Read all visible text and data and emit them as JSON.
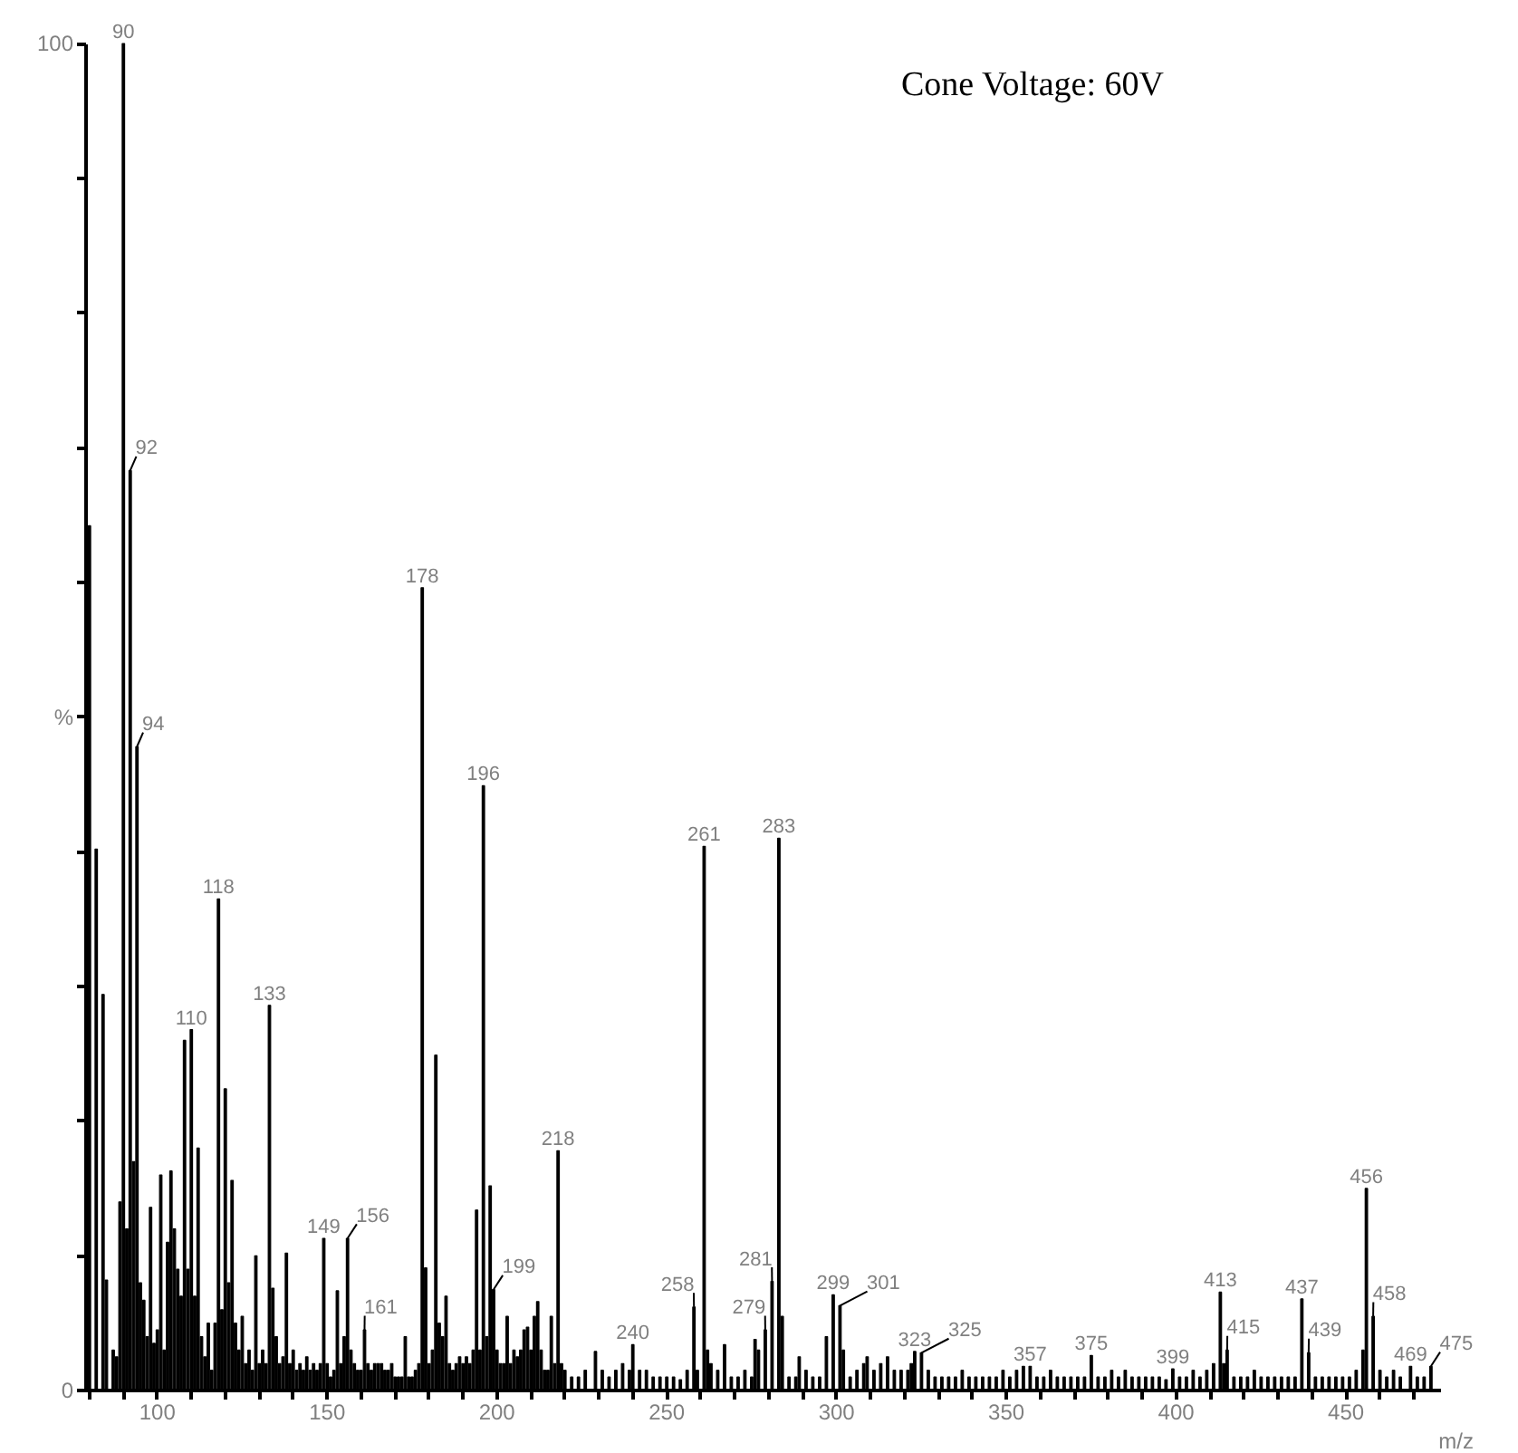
{
  "chart_data": {
    "type": "bar",
    "xlabel": "m/z",
    "x": [
      80,
      82,
      84,
      85,
      87,
      88,
      89,
      90,
      91,
      92,
      93,
      94,
      95,
      96,
      97,
      98,
      99,
      100,
      101,
      102,
      103,
      104,
      105,
      106,
      107,
      108,
      109,
      110,
      111,
      112,
      113,
      114,
      115,
      116,
      117,
      118,
      119,
      120,
      121,
      122,
      123,
      124,
      125,
      126,
      127,
      128,
      129,
      130,
      131,
      132,
      133,
      134,
      135,
      136,
      137,
      138,
      139,
      140,
      141,
      142,
      143,
      144,
      145,
      146,
      147,
      148,
      149,
      150,
      151,
      152,
      153,
      154,
      155,
      156,
      157,
      158,
      159,
      160,
      161,
      162,
      163,
      164,
      165,
      166,
      167,
      168,
      169,
      170,
      171,
      172,
      173,
      174,
      175,
      176,
      177,
      178,
      179,
      180,
      181,
      182,
      183,
      184,
      185,
      186,
      187,
      188,
      189,
      190,
      191,
      192,
      193,
      194,
      195,
      196,
      197,
      198,
      199,
      200,
      201,
      202,
      203,
      204,
      205,
      206,
      207,
      208,
      209,
      210,
      211,
      212,
      213,
      214,
      215,
      216,
      217,
      218,
      219,
      220,
      222,
      224,
      226,
      229,
      231,
      233,
      235,
      237,
      239,
      240,
      242,
      244,
      246,
      248,
      250,
      252,
      254,
      256,
      258,
      259,
      261,
      262,
      263,
      265,
      267,
      269,
      271,
      273,
      275,
      276,
      277,
      279,
      281,
      283,
      284,
      286,
      288,
      289,
      291,
      293,
      295,
      297,
      299,
      301,
      302,
      304,
      306,
      308,
      309,
      311,
      313,
      315,
      317,
      319,
      321,
      322,
      323,
      325,
      327,
      329,
      331,
      333,
      335,
      337,
      339,
      341,
      343,
      345,
      347,
      349,
      351,
      353,
      355,
      357,
      359,
      361,
      363,
      365,
      367,
      369,
      371,
      373,
      375,
      377,
      379,
      381,
      383,
      385,
      387,
      389,
      391,
      393,
      395,
      397,
      399,
      401,
      403,
      405,
      407,
      409,
      411,
      413,
      414,
      415,
      417,
      419,
      421,
      423,
      425,
      427,
      429,
      431,
      433,
      435,
      437,
      439,
      441,
      443,
      445,
      447,
      449,
      451,
      453,
      455,
      456,
      458,
      460,
      462,
      464,
      466,
      469,
      471,
      473,
      475
    ],
    "values": [
      64.2,
      40.2,
      29.4,
      8.2,
      3,
      2.5,
      14,
      100,
      12,
      68.3,
      17,
      47.8,
      8,
      6.7,
      4,
      13.6,
      3.5,
      4.5,
      16,
      3,
      11,
      16.3,
      12,
      9,
      7,
      26,
      9,
      26.8,
      7,
      18,
      4,
      2.5,
      5,
      1.5,
      5,
      36.5,
      6,
      22.4,
      8,
      15.6,
      5,
      3,
      5.5,
      2,
      3,
      1.5,
      10,
      2,
      3,
      2,
      28.6,
      7.6,
      4,
      2,
      2.5,
      10.2,
      2,
      3,
      1.5,
      2,
      1.5,
      2.5,
      1.5,
      2,
      1.5,
      2,
      11.3,
      2,
      1,
      1.5,
      7.4,
      2,
      4,
      11.3,
      3,
      2,
      1.5,
      1.5,
      4.5,
      2,
      1.5,
      2,
      2,
      2,
      1.5,
      1.5,
      2,
      1,
      1,
      1,
      4,
      1,
      1,
      1.5,
      2,
      59.6,
      9.1,
      2,
      3,
      24.9,
      5,
      4,
      7,
      2,
      1.5,
      2,
      2.5,
      2,
      2.5,
      2,
      3,
      13.4,
      3,
      44.9,
      4,
      15.2,
      7.5,
      3,
      2,
      2,
      5.5,
      2,
      3,
      2.5,
      3,
      4.5,
      4.7,
      3,
      5.5,
      6.6,
      3,
      1.5,
      1.5,
      5.5,
      2,
      17.8,
      2,
      1.5,
      1,
      1,
      1.5,
      2.9,
      1.5,
      1,
      1.5,
      2,
      1.5,
      3.4,
      1.5,
      1.5,
      1,
      1,
      1,
      1,
      0.8,
      1.5,
      6.2,
      1.5,
      40.4,
      3,
      2,
      1.5,
      3.4,
      1,
      1,
      1.5,
      1,
      3.8,
      3,
      4.5,
      8.1,
      41,
      5.5,
      1,
      1,
      2.5,
      1.5,
      1,
      1,
      4,
      7.1,
      6.3,
      3,
      1,
      1.5,
      2,
      2.5,
      1.5,
      2,
      2.5,
      1.5,
      1.5,
      1.5,
      2,
      2.9,
      2.8,
      1.5,
      1,
      1,
      1,
      1,
      1.5,
      1,
      1,
      1,
      1,
      1,
      1.5,
      1,
      1.5,
      1.8,
      1.8,
      1,
      1,
      1.5,
      1,
      1,
      1,
      1,
      1,
      2.6,
      1,
      1,
      1.5,
      1,
      1.5,
      1,
      1,
      1,
      1,
      1,
      0.8,
      1.6,
      1,
      1,
      1.5,
      1,
      1.5,
      2,
      7.3,
      2,
      3,
      1,
      1,
      1,
      1.5,
      1,
      1,
      1,
      1,
      1,
      1,
      6.8,
      2.8,
      1,
      1,
      1,
      1,
      1,
      1,
      1.5,
      3,
      15,
      5.5,
      1.5,
      1,
      1.5,
      1,
      1.8,
      1,
      1,
      1.8
    ],
    "color": "#000000",
    "xlim": [
      79,
      478
    ],
    "ylim": [
      0,
      100
    ],
    "xticks": [
      {
        "value": 80,
        "label": null
      },
      {
        "value": 90,
        "label": null
      },
      100,
      {
        "value": 110,
        "label": null
      },
      {
        "value": 120,
        "label": null
      },
      {
        "value": 130,
        "label": null
      },
      {
        "value": 140,
        "label": null
      },
      150,
      {
        "value": 160,
        "label": null
      },
      {
        "value": 170,
        "label": null
      },
      {
        "value": 180,
        "label": null
      },
      {
        "value": 190,
        "label": null
      },
      200,
      {
        "value": 210,
        "label": null
      },
      {
        "value": 220,
        "label": null
      },
      {
        "value": 230,
        "label": null
      },
      {
        "value": 240,
        "label": null
      },
      250,
      {
        "value": 260,
        "label": null
      },
      {
        "value": 270,
        "label": null
      },
      {
        "value": 280,
        "label": null
      },
      {
        "value": 290,
        "label": null
      },
      300,
      {
        "value": 310,
        "label": null
      },
      {
        "value": 320,
        "label": null
      },
      {
        "value": 330,
        "label": null
      },
      {
        "value": 340,
        "label": null
      },
      350,
      {
        "value": 360,
        "label": null
      },
      {
        "value": 370,
        "label": null
      },
      {
        "value": 380,
        "label": null
      },
      {
        "value": 390,
        "label": null
      },
      400,
      {
        "value": 410,
        "label": null
      },
      {
        "value": 420,
        "label": null
      },
      {
        "value": 430,
        "label": null
      },
      {
        "value": 440,
        "label": null
      },
      450,
      {
        "value": 460,
        "label": null
      },
      {
        "value": 470,
        "label": null
      }
    ],
    "yticks": [
      0,
      {
        "value": 10,
        "label": null
      },
      {
        "value": 20,
        "label": null
      },
      {
        "value": 30,
        "label": null
      },
      {
        "value": 40,
        "label": null
      },
      {
        "value": 50,
        "label": "%"
      },
      {
        "value": 60,
        "label": null
      },
      {
        "value": 70,
        "label": null
      },
      {
        "value": 80,
        "label": null
      },
      {
        "value": 90,
        "label": null
      },
      100
    ],
    "grid": false,
    "annotations": [
      "Cone Voltage:  60V",
      {
        "text": "90",
        "x": 90,
        "y": 100
      },
      {
        "text": "92",
        "x": 92,
        "y": 68.3
      },
      {
        "text": "94",
        "x": 94,
        "y": 47.8
      },
      {
        "text": "110",
        "x": 110,
        "y": 26.8
      },
      {
        "text": "118",
        "x": 118,
        "y": 36.5
      },
      {
        "text": "133",
        "x": 133,
        "y": 28.6
      },
      {
        "text": "149",
        "x": 149,
        "y": 11.3
      },
      {
        "text": "156",
        "x": 156,
        "y": 11.3
      },
      {
        "text": "161",
        "x": 161,
        "y": 4.5
      },
      {
        "text": "178",
        "x": 178,
        "y": 59.6
      },
      {
        "text": "196",
        "x": 196,
        "y": 44.9
      },
      {
        "text": "199",
        "x": 199,
        "y": 7.5
      },
      {
        "text": "218",
        "x": 218,
        "y": 17.8
      },
      {
        "text": "240",
        "x": 240,
        "y": 3.4
      },
      {
        "text": "258",
        "x": 258,
        "y": 6.2
      },
      {
        "text": "261",
        "x": 261,
        "y": 40.4
      },
      {
        "text": "279",
        "x": 279,
        "y": 4.5
      },
      {
        "text": "281",
        "x": 281,
        "y": 8.1
      },
      {
        "text": "283",
        "x": 283,
        "y": 41
      },
      {
        "text": "299",
        "x": 299,
        "y": 7.1
      },
      {
        "text": "301",
        "x": 301,
        "y": 6.3
      },
      {
        "text": "323",
        "x": 323,
        "y": 2.9
      },
      {
        "text": "325",
        "x": 325,
        "y": 2.8
      },
      {
        "text": "357",
        "x": 357,
        "y": 1.8
      },
      {
        "text": "375",
        "x": 375,
        "y": 2.6
      },
      {
        "text": "399",
        "x": 399,
        "y": 1.6
      },
      {
        "text": "413",
        "x": 413,
        "y": 7.3
      },
      {
        "text": "415",
        "x": 415,
        "y": 3
      },
      {
        "text": "437",
        "x": 437,
        "y": 6.8
      },
      {
        "text": "439",
        "x": 439,
        "y": 2.8
      },
      {
        "text": "456",
        "x": 456,
        "y": 15
      },
      {
        "text": "458",
        "x": 458,
        "y": 5.5
      },
      {
        "text": "469",
        "x": 469,
        "y": 1.8
      },
      {
        "text": "475",
        "x": 475,
        "y": 1.8
      }
    ]
  }
}
